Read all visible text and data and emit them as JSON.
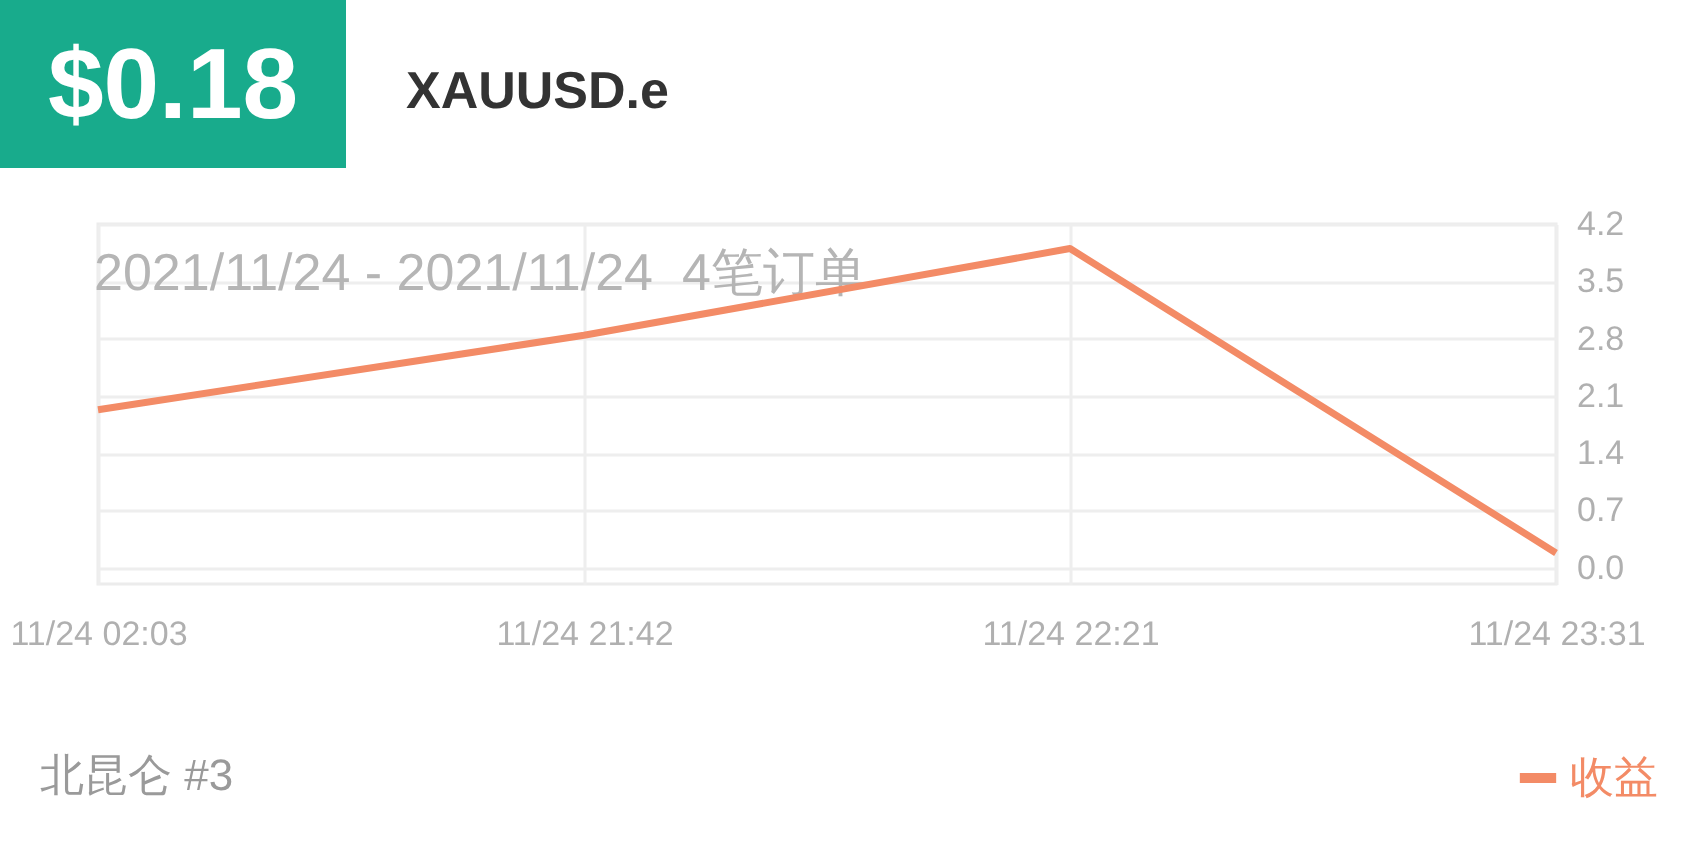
{
  "chart_data": {
    "type": "line",
    "title": "XAUUSD.e",
    "annotations": [
      "$0.18",
      "2021/11/24 - 2021/11/24  4笔订单",
      "北昆仑 #3"
    ],
    "categories": [
      "11/24 02:03",
      "11/24 21:42",
      "11/24 22:21",
      "11/24 23:31"
    ],
    "series": [
      {
        "name": "收益",
        "color": "#f38b66",
        "values": [
          1.93,
          2.84,
          3.9,
          0.18
        ]
      }
    ],
    "ylim": [
      -0.2,
      4.2
    ],
    "yticks": [
      {
        "value": 0,
        "label": "0.0"
      },
      0.7,
      1.4,
      2.1,
      2.8,
      3.5,
      4.2
    ],
    "grid": true,
    "legend": "bottom right"
  }
}
